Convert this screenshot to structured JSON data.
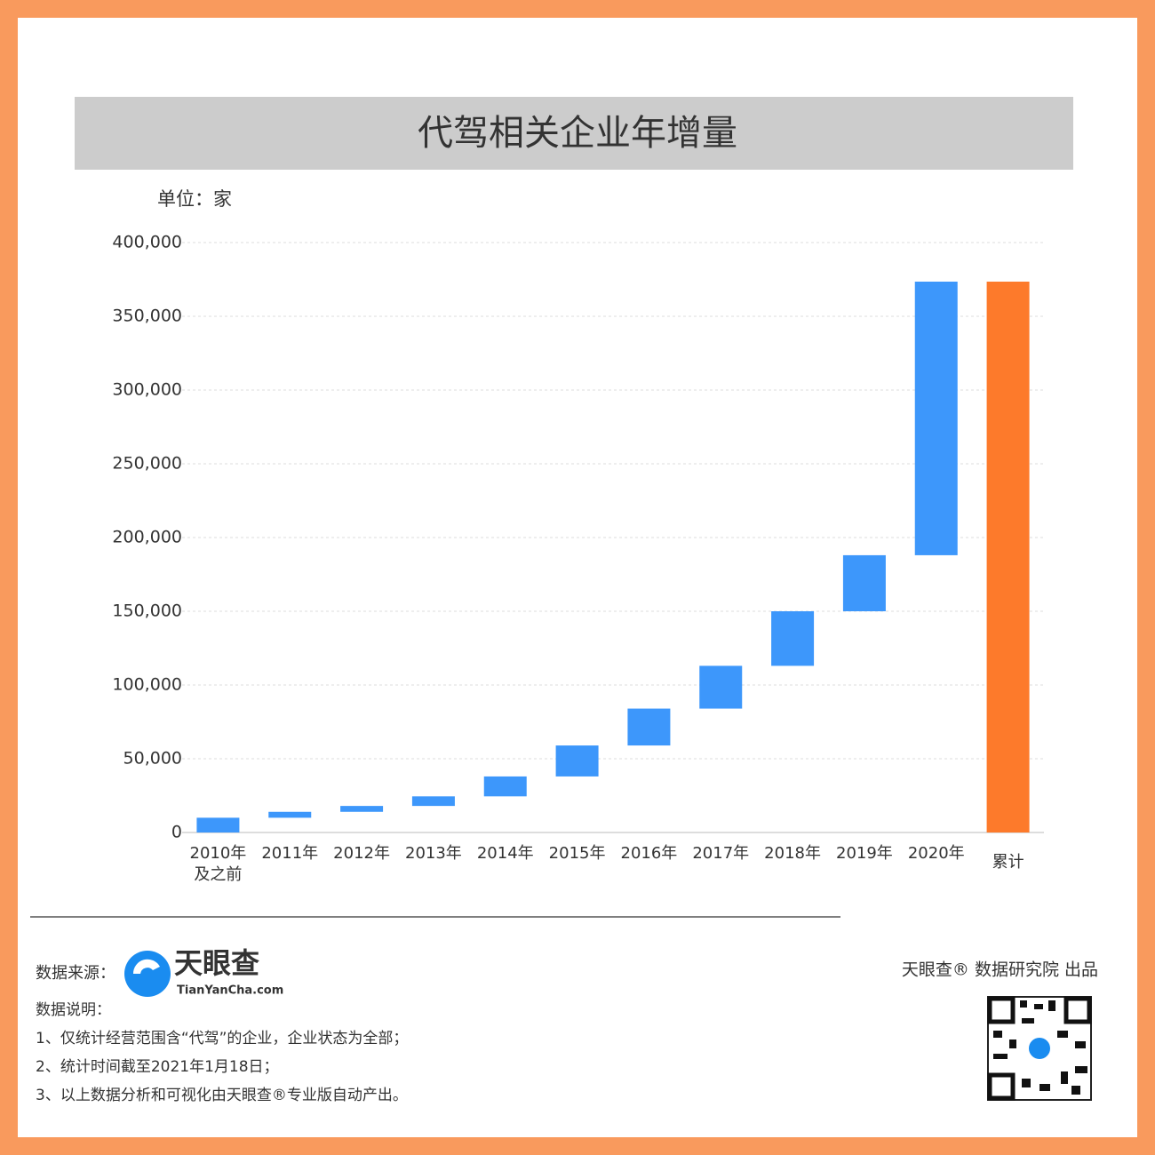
{
  "chart_data": {
    "type": "waterfall",
    "title": "代驾相关企业年增量",
    "unit_label": "单位：家",
    "categories": [
      "2010年\n及之前",
      "2011年",
      "2012年",
      "2013年",
      "2014年",
      "2015年",
      "2016年",
      "2017年",
      "2018年",
      "2019年",
      "2020年"
    ],
    "values": [
      10000,
      4000,
      4000,
      6500,
      13500,
      21000,
      25000,
      29000,
      37000,
      38000,
      185500
    ],
    "color": "#3d97fb",
    "total": {
      "label": "累计",
      "value": 373500,
      "color": "#fd7a2b"
    },
    "ylim": [
      0,
      400000
    ],
    "yticks": [
      0,
      {
        "value": 50000,
        "label": "50,000"
      },
      {
        "value": 100000,
        "label": "100,000"
      },
      {
        "value": 150000,
        "label": "150,000"
      },
      {
        "value": 200000,
        "label": "200,000"
      },
      {
        "value": 250000,
        "label": "250,000"
      },
      {
        "value": 300000,
        "label": "300,000"
      },
      {
        "value": 350000,
        "label": "350,000"
      },
      {
        "value": 400000,
        "label": "400,000"
      }
    ],
    "grid": true
  },
  "footer": {
    "source_label": "数据来源：",
    "logo_name": "天眼查",
    "logo_url": "TianYanCha.com",
    "notes_title": "数据说明：",
    "notes": [
      "1、仅统计经营范围含“代驾”的企业，企业状态为全部；",
      "2、统计时间截至2021年1月18日；",
      "3、以上数据分析和可视化由天眼查®专业版自动产出。"
    ],
    "credit": "天眼查® 数据研究院 出品"
  }
}
